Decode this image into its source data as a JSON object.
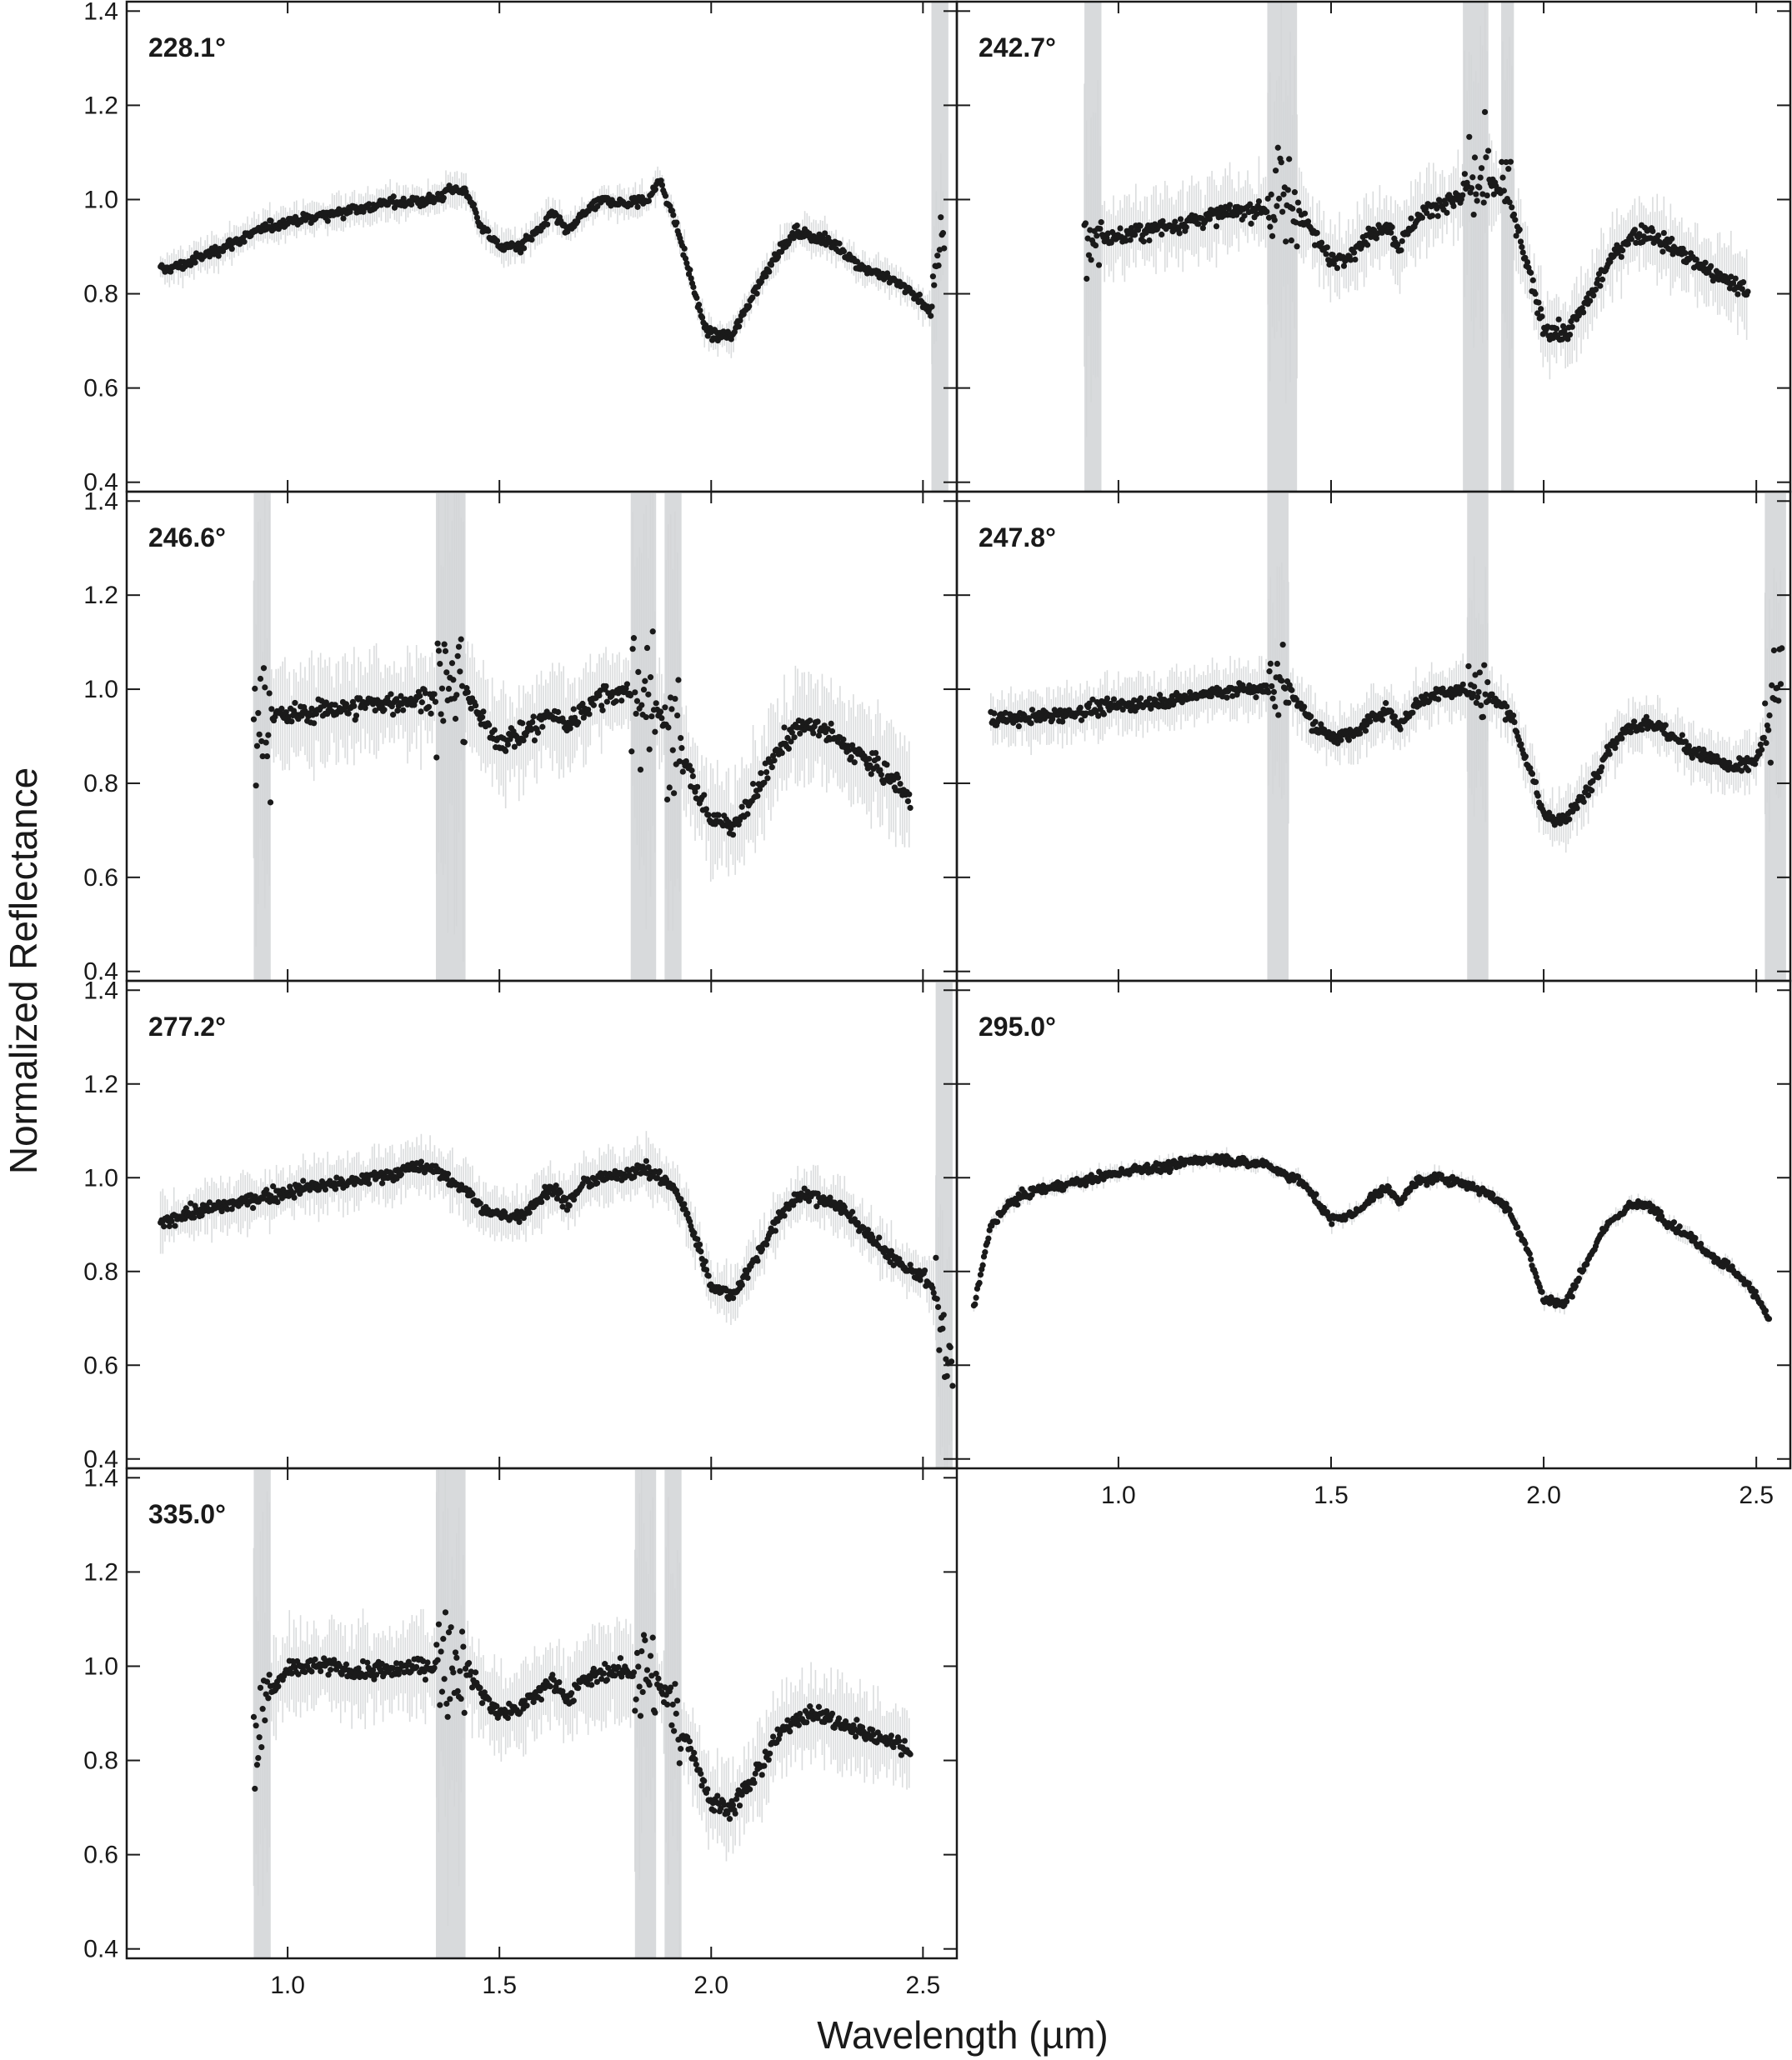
{
  "chart_data": {
    "type": "scatter",
    "xlabel": "Wavelength (µm)",
    "ylabel": "Normalized Reflectance",
    "xlim": [
      0.62,
      2.58
    ],
    "ylim": [
      0.38,
      1.42
    ],
    "x_ticks": [
      "1.0",
      "1.5",
      "2.0",
      "2.5"
    ],
    "x_tick_values": [
      1.0,
      1.5,
      2.0,
      2.5
    ],
    "y_ticks": [
      "0.4",
      "0.6",
      "0.8",
      "1.0",
      "1.2",
      "1.4"
    ],
    "y_tick_values": [
      0.4,
      0.6,
      0.8,
      1.0,
      1.2,
      1.4
    ],
    "colors": {
      "points": "#1a1a1a",
      "error_bars": "#d4d6d8",
      "frame": "#1a1a1a"
    },
    "panels": [
      {
        "name": "228.1°",
        "x_range": [
          0.7,
          2.55
        ],
        "points": [
          [
            0.7,
            0.85
          ],
          [
            0.75,
            0.86
          ],
          [
            0.8,
            0.88
          ],
          [
            0.85,
            0.9
          ],
          [
            0.9,
            0.92
          ],
          [
            0.95,
            0.94
          ],
          [
            1.0,
            0.955
          ],
          [
            1.05,
            0.96
          ],
          [
            1.1,
            0.97
          ],
          [
            1.15,
            0.98
          ],
          [
            1.2,
            0.985
          ],
          [
            1.25,
            0.995
          ],
          [
            1.3,
            0.995
          ],
          [
            1.35,
            1.0
          ],
          [
            1.38,
            1.02
          ],
          [
            1.42,
            1.02
          ],
          [
            1.46,
            0.94
          ],
          [
            1.5,
            0.9
          ],
          [
            1.55,
            0.9
          ],
          [
            1.6,
            0.94
          ],
          [
            1.63,
            0.97
          ],
          [
            1.66,
            0.93
          ],
          [
            1.7,
            0.97
          ],
          [
            1.75,
            1.0
          ],
          [
            1.8,
            0.99
          ],
          [
            1.85,
            1.0
          ],
          [
            1.88,
            1.04
          ],
          [
            1.92,
            0.94
          ],
          [
            1.95,
            0.84
          ],
          [
            1.98,
            0.74
          ],
          [
            2.0,
            0.71
          ],
          [
            2.05,
            0.71
          ],
          [
            2.1,
            0.8
          ],
          [
            2.15,
            0.88
          ],
          [
            2.2,
            0.93
          ],
          [
            2.25,
            0.92
          ],
          [
            2.3,
            0.9
          ],
          [
            2.35,
            0.86
          ],
          [
            2.4,
            0.84
          ],
          [
            2.45,
            0.82
          ],
          [
            2.5,
            0.78
          ],
          [
            2.52,
            0.76
          ],
          [
            2.55,
            0.95
          ]
        ],
        "noise": 0.012,
        "error_bar": 0.03,
        "noisy_bands": [
          [
            2.52,
            2.56
          ]
        ]
      },
      {
        "name": "242.7°",
        "x_range": [
          0.92,
          2.48
        ],
        "points": [
          [
            0.92,
            0.9
          ],
          [
            0.95,
            0.92
          ],
          [
            1.0,
            0.92
          ],
          [
            1.05,
            0.93
          ],
          [
            1.1,
            0.94
          ],
          [
            1.15,
            0.95
          ],
          [
            1.2,
            0.96
          ],
          [
            1.25,
            0.97
          ],
          [
            1.3,
            0.975
          ],
          [
            1.35,
            0.98
          ],
          [
            1.38,
            1.0
          ],
          [
            1.42,
            0.99
          ],
          [
            1.46,
            0.92
          ],
          [
            1.5,
            0.87
          ],
          [
            1.55,
            0.89
          ],
          [
            1.6,
            0.93
          ],
          [
            1.63,
            0.95
          ],
          [
            1.66,
            0.9
          ],
          [
            1.7,
            0.96
          ],
          [
            1.75,
            0.99
          ],
          [
            1.8,
            1.0
          ],
          [
            1.85,
            1.02
          ],
          [
            1.88,
            1.03
          ],
          [
            1.92,
            1.0
          ],
          [
            1.96,
            0.86
          ],
          [
            2.0,
            0.73
          ],
          [
            2.05,
            0.71
          ],
          [
            2.1,
            0.78
          ],
          [
            2.15,
            0.86
          ],
          [
            2.2,
            0.92
          ],
          [
            2.25,
            0.93
          ],
          [
            2.3,
            0.9
          ],
          [
            2.35,
            0.87
          ],
          [
            2.4,
            0.84
          ],
          [
            2.45,
            0.82
          ],
          [
            2.48,
            0.8
          ]
        ],
        "noise": 0.02,
        "error_bar": 0.07,
        "noisy_bands": [
          [
            0.92,
            0.96
          ],
          [
            1.35,
            1.42
          ],
          [
            1.81,
            1.87
          ],
          [
            1.9,
            1.93
          ]
        ]
      },
      {
        "name": "246.6°",
        "x_range": [
          0.92,
          2.47
        ],
        "points": [
          [
            0.92,
            0.95
          ],
          [
            0.95,
            0.95
          ],
          [
            1.0,
            0.94
          ],
          [
            1.05,
            0.95
          ],
          [
            1.1,
            0.96
          ],
          [
            1.15,
            0.96
          ],
          [
            1.2,
            0.97
          ],
          [
            1.25,
            0.97
          ],
          [
            1.3,
            0.98
          ],
          [
            1.35,
            0.98
          ],
          [
            1.38,
            1.0
          ],
          [
            1.42,
            1.0
          ],
          [
            1.46,
            0.93
          ],
          [
            1.5,
            0.89
          ],
          [
            1.55,
            0.9
          ],
          [
            1.6,
            0.93
          ],
          [
            1.63,
            0.95
          ],
          [
            1.66,
            0.92
          ],
          [
            1.7,
            0.96
          ],
          [
            1.75,
            0.99
          ],
          [
            1.8,
            0.99
          ],
          [
            1.84,
            0.99
          ],
          [
            1.88,
            0.95
          ],
          [
            1.92,
            0.87
          ],
          [
            1.96,
            0.8
          ],
          [
            2.0,
            0.72
          ],
          [
            2.05,
            0.71
          ],
          [
            2.1,
            0.77
          ],
          [
            2.15,
            0.86
          ],
          [
            2.2,
            0.92
          ],
          [
            2.25,
            0.92
          ],
          [
            2.3,
            0.89
          ],
          [
            2.35,
            0.86
          ],
          [
            2.4,
            0.83
          ],
          [
            2.45,
            0.79
          ],
          [
            2.47,
            0.76
          ]
        ],
        "noise": 0.025,
        "error_bar": 0.09,
        "noisy_bands": [
          [
            0.92,
            0.96
          ],
          [
            1.35,
            1.42
          ],
          [
            1.81,
            1.87
          ],
          [
            1.89,
            1.93
          ]
        ]
      },
      {
        "name": "247.8°",
        "x_range": [
          0.7,
          2.56
        ],
        "points": [
          [
            0.7,
            0.94
          ],
          [
            0.75,
            0.935
          ],
          [
            0.8,
            0.94
          ],
          [
            0.85,
            0.945
          ],
          [
            0.9,
            0.95
          ],
          [
            0.95,
            0.96
          ],
          [
            1.0,
            0.965
          ],
          [
            1.05,
            0.97
          ],
          [
            1.1,
            0.975
          ],
          [
            1.15,
            0.98
          ],
          [
            1.2,
            0.99
          ],
          [
            1.25,
            0.995
          ],
          [
            1.3,
            1.0
          ],
          [
            1.35,
            1.0
          ],
          [
            1.38,
            1.03
          ],
          [
            1.42,
            0.98
          ],
          [
            1.46,
            0.92
          ],
          [
            1.5,
            0.9
          ],
          [
            1.55,
            0.9
          ],
          [
            1.6,
            0.94
          ],
          [
            1.63,
            0.96
          ],
          [
            1.66,
            0.92
          ],
          [
            1.7,
            0.97
          ],
          [
            1.75,
            0.99
          ],
          [
            1.8,
            1.0
          ],
          [
            1.84,
            1.0
          ],
          [
            1.88,
            0.98
          ],
          [
            1.92,
            0.95
          ],
          [
            1.96,
            0.85
          ],
          [
            2.0,
            0.73
          ],
          [
            2.05,
            0.72
          ],
          [
            2.1,
            0.78
          ],
          [
            2.15,
            0.87
          ],
          [
            2.2,
            0.92
          ],
          [
            2.25,
            0.93
          ],
          [
            2.3,
            0.9
          ],
          [
            2.35,
            0.87
          ],
          [
            2.4,
            0.85
          ],
          [
            2.45,
            0.83
          ],
          [
            2.5,
            0.85
          ],
          [
            2.53,
            0.92
          ],
          [
            2.56,
            1.05
          ]
        ],
        "noise": 0.015,
        "error_bar": 0.05,
        "noisy_bands": [
          [
            1.35,
            1.4
          ],
          [
            1.82,
            1.87
          ],
          [
            2.52,
            2.57
          ]
        ]
      },
      {
        "name": "277.2°",
        "x_range": [
          0.7,
          2.57
        ],
        "points": [
          [
            0.7,
            0.9
          ],
          [
            0.75,
            0.92
          ],
          [
            0.8,
            0.93
          ],
          [
            0.85,
            0.94
          ],
          [
            0.9,
            0.95
          ],
          [
            0.95,
            0.96
          ],
          [
            1.0,
            0.97
          ],
          [
            1.05,
            0.98
          ],
          [
            1.1,
            0.985
          ],
          [
            1.15,
            0.99
          ],
          [
            1.2,
            1.0
          ],
          [
            1.25,
            1.01
          ],
          [
            1.3,
            1.02
          ],
          [
            1.35,
            1.02
          ],
          [
            1.38,
            0.99
          ],
          [
            1.42,
            0.98
          ],
          [
            1.46,
            0.93
          ],
          [
            1.5,
            0.92
          ],
          [
            1.55,
            0.92
          ],
          [
            1.6,
            0.96
          ],
          [
            1.63,
            0.98
          ],
          [
            1.66,
            0.94
          ],
          [
            1.7,
            0.99
          ],
          [
            1.75,
            1.0
          ],
          [
            1.8,
            1.01
          ],
          [
            1.84,
            1.02
          ],
          [
            1.88,
            1.0
          ],
          [
            1.92,
            0.97
          ],
          [
            1.96,
            0.88
          ],
          [
            2.0,
            0.77
          ],
          [
            2.05,
            0.75
          ],
          [
            2.1,
            0.82
          ],
          [
            2.15,
            0.9
          ],
          [
            2.2,
            0.96
          ],
          [
            2.25,
            0.96
          ],
          [
            2.3,
            0.94
          ],
          [
            2.35,
            0.9
          ],
          [
            2.4,
            0.85
          ],
          [
            2.45,
            0.81
          ],
          [
            2.5,
            0.79
          ],
          [
            2.53,
            0.75
          ],
          [
            2.56,
            0.6
          ]
        ],
        "noise": 0.015,
        "error_bar": 0.05,
        "noisy_bands": [
          [
            2.53,
            2.57
          ]
        ]
      },
      {
        "name": "295.0°",
        "x_range": [
          0.66,
          2.53
        ],
        "points": [
          [
            0.66,
            0.72
          ],
          [
            0.7,
            0.9
          ],
          [
            0.75,
            0.95
          ],
          [
            0.8,
            0.97
          ],
          [
            0.85,
            0.98
          ],
          [
            0.9,
            0.99
          ],
          [
            0.95,
            1.0
          ],
          [
            1.0,
            1.01
          ],
          [
            1.05,
            1.02
          ],
          [
            1.1,
            1.02
          ],
          [
            1.15,
            1.03
          ],
          [
            1.2,
            1.04
          ],
          [
            1.25,
            1.04
          ],
          [
            1.3,
            1.03
          ],
          [
            1.35,
            1.03
          ],
          [
            1.38,
            1.01
          ],
          [
            1.42,
            1.0
          ],
          [
            1.46,
            0.96
          ],
          [
            1.5,
            0.91
          ],
          [
            1.55,
            0.92
          ],
          [
            1.6,
            0.96
          ],
          [
            1.63,
            0.98
          ],
          [
            1.66,
            0.95
          ],
          [
            1.7,
            0.99
          ],
          [
            1.75,
            1.0
          ],
          [
            1.8,
            0.99
          ],
          [
            1.84,
            0.98
          ],
          [
            1.88,
            0.96
          ],
          [
            1.92,
            0.93
          ],
          [
            1.96,
            0.85
          ],
          [
            2.0,
            0.74
          ],
          [
            2.05,
            0.73
          ],
          [
            2.1,
            0.82
          ],
          [
            2.15,
            0.9
          ],
          [
            2.2,
            0.94
          ],
          [
            2.25,
            0.94
          ],
          [
            2.3,
            0.9
          ],
          [
            2.35,
            0.87
          ],
          [
            2.4,
            0.83
          ],
          [
            2.45,
            0.8
          ],
          [
            2.5,
            0.75
          ],
          [
            2.53,
            0.7
          ]
        ],
        "noise": 0.01,
        "error_bar": 0.015,
        "noisy_bands": []
      },
      {
        "name": "335.0°",
        "x_range": [
          0.92,
          2.47
        ],
        "points": [
          [
            0.92,
            0.8
          ],
          [
            0.95,
            0.93
          ],
          [
            1.0,
            0.99
          ],
          [
            1.05,
            1.0
          ],
          [
            1.1,
            1.0
          ],
          [
            1.15,
            0.99
          ],
          [
            1.2,
            0.99
          ],
          [
            1.25,
            0.99
          ],
          [
            1.3,
            1.0
          ],
          [
            1.35,
            1.0
          ],
          [
            1.38,
            1.02
          ],
          [
            1.42,
            1.0
          ],
          [
            1.46,
            0.94
          ],
          [
            1.5,
            0.9
          ],
          [
            1.55,
            0.91
          ],
          [
            1.6,
            0.95
          ],
          [
            1.63,
            0.97
          ],
          [
            1.66,
            0.93
          ],
          [
            1.7,
            0.97
          ],
          [
            1.75,
            0.99
          ],
          [
            1.8,
            0.99
          ],
          [
            1.84,
            0.98
          ],
          [
            1.88,
            0.95
          ],
          [
            1.92,
            0.88
          ],
          [
            1.96,
            0.81
          ],
          [
            2.0,
            0.71
          ],
          [
            2.05,
            0.7
          ],
          [
            2.1,
            0.76
          ],
          [
            2.15,
            0.84
          ],
          [
            2.2,
            0.89
          ],
          [
            2.25,
            0.9
          ],
          [
            2.3,
            0.88
          ],
          [
            2.35,
            0.86
          ],
          [
            2.4,
            0.85
          ],
          [
            2.45,
            0.83
          ],
          [
            2.47,
            0.82
          ]
        ],
        "noise": 0.02,
        "error_bar": 0.08,
        "noisy_bands": [
          [
            0.92,
            0.96
          ],
          [
            1.35,
            1.42
          ],
          [
            1.82,
            1.87
          ],
          [
            1.89,
            1.93
          ]
        ]
      }
    ]
  }
}
